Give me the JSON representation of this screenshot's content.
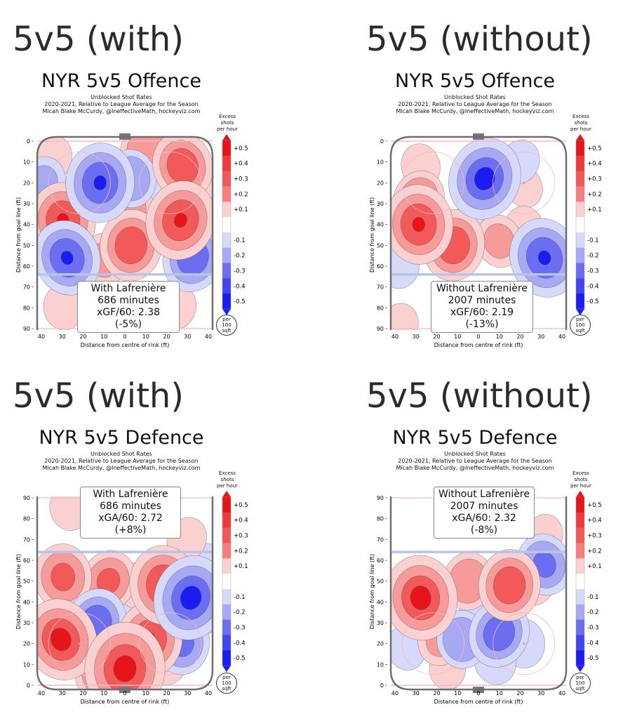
{
  "section_titles": [
    "5v5 (with)",
    "5v5 (without)",
    "5v5 (with)",
    "5v5 (without)"
  ],
  "colors": {
    "strong_red": "#e8141c",
    "red": "#f25a5a",
    "mid_red": "#f79a9a",
    "light_red": "#fbd0d0",
    "light_blue": "#d7d9fb",
    "mid_blue": "#a7a9f4",
    "blue": "#6b6ef0",
    "strong_blue": "#1a1cf0",
    "rink_line": "#6e6e6e",
    "blue_line": "#b9c3e6",
    "goal_line": "#f7b9c0",
    "net": "#777777"
  },
  "chart_data": [
    {
      "type": "heatmap",
      "title": "NYR 5v5 Offence",
      "subtitle": [
        "Unblocked Shot Rates",
        "2020-2021, Relative to League Average for the Season",
        "Micah Blake McCurdy, @IneffectiveMath, hockeyviz.com"
      ],
      "xlabel": "Distance from centre of rink (ft)",
      "ylabel": "Distance from goal line (ft)",
      "x_ticks": [
        "40",
        "30",
        "20",
        "10",
        "0",
        "10",
        "20",
        "30",
        "40"
      ],
      "y_ticks": [
        "0",
        "10",
        "20",
        "30",
        "40",
        "50",
        "60",
        "70",
        "80",
        "90"
      ],
      "orientation": "goal-top",
      "colorbar": {
        "title": [
          "Excess",
          "shots",
          "per hour"
        ],
        "ticks": [
          "+0.5",
          "+0.4",
          "+0.3",
          "+0.2",
          "+0.1",
          "-0.1",
          "-0.2",
          "-0.3",
          "-0.4",
          "-0.5"
        ]
      },
      "unit": [
        "per",
        "100",
        "sqft"
      ],
      "infobox": [
        "With Lafrenière",
        "686 minutes",
        "xGF/60: 2.38 (-5%)"
      ],
      "blobs": [
        {
          "x": -30,
          "y": 38,
          "v": 0.35
        },
        {
          "x": 27,
          "y": 38,
          "v": 0.38
        },
        {
          "x": 3,
          "y": 50,
          "v": 0.32
        },
        {
          "x": 10,
          "y": 5,
          "v": 0.22
        },
        {
          "x": 28,
          "y": 12,
          "v": 0.3
        },
        {
          "x": -10,
          "y": 57,
          "v": 0.18
        },
        {
          "x": 3,
          "y": 32,
          "v": 0.18
        },
        {
          "x": -35,
          "y": 8,
          "v": 0.12
        },
        {
          "x": 38,
          "y": 22,
          "v": 0.12
        },
        {
          "x": -30,
          "y": 80,
          "v": 0.12
        },
        {
          "x": 25,
          "y": 80,
          "v": 0.12
        },
        {
          "x": -12,
          "y": 20,
          "v": -0.38
        },
        {
          "x": 3,
          "y": 18,
          "v": -0.22
        },
        {
          "x": -28,
          "y": 56,
          "v": -0.35
        },
        {
          "x": 33,
          "y": 56,
          "v": -0.3
        },
        {
          "x": -40,
          "y": 20,
          "v": -0.18
        },
        {
          "x": 18,
          "y": 22,
          "v": -0.12
        },
        {
          "x": 15,
          "y": 55,
          "v": -0.08
        }
      ]
    },
    {
      "type": "heatmap",
      "title": "NYR 5v5 Offence",
      "subtitle": [
        "Unblocked Shot Rates",
        "2020-2021, Relative to League Average for the Season",
        "Micah Blake McCurdy, @IneffectiveMath, hockeyviz.com"
      ],
      "xlabel": "Distance from centre of rink (ft)",
      "ylabel": "Distance from goal line (ft)",
      "x_ticks": [
        "40",
        "30",
        "20",
        "10",
        "0",
        "10",
        "20",
        "30",
        "40"
      ],
      "y_ticks": [
        "0",
        "10",
        "20",
        "30",
        "40",
        "50",
        "60",
        "70",
        "80",
        "90"
      ],
      "orientation": "goal-top",
      "colorbar": {
        "title": [
          "Excess",
          "shots",
          "per hour"
        ],
        "ticks": [
          "+0.5",
          "+0.4",
          "+0.3",
          "+0.2",
          "+0.1",
          "-0.1",
          "-0.2",
          "-0.3",
          "-0.4",
          "-0.5"
        ]
      },
      "unit": [
        "per",
        "100",
        "sqft"
      ],
      "infobox": [
        "Without Lafrenière",
        "2007 minutes",
        "xGF/60: 2.19 (-13%)"
      ],
      "blobs": [
        {
          "x": -29,
          "y": 40,
          "v": 0.38
        },
        {
          "x": -12,
          "y": 50,
          "v": 0.32
        },
        {
          "x": -29,
          "y": 28,
          "v": 0.22
        },
        {
          "x": 10,
          "y": 48,
          "v": 0.18
        },
        {
          "x": 22,
          "y": 42,
          "v": 0.12
        },
        {
          "x": -28,
          "y": 12,
          "v": 0.12
        },
        {
          "x": 22,
          "y": 22,
          "v": 0.1
        },
        {
          "x": -38,
          "y": 88,
          "v": 0.1
        },
        {
          "x": 3,
          "y": 18,
          "v": -0.4
        },
        {
          "x": 32,
          "y": 56,
          "v": -0.38
        },
        {
          "x": 20,
          "y": 10,
          "v": -0.12
        },
        {
          "x": -38,
          "y": 60,
          "v": -0.12
        },
        {
          "x": 0,
          "y": 30,
          "v": -0.15
        }
      ]
    },
    {
      "type": "heatmap",
      "title": "NYR 5v5 Defence",
      "subtitle": [
        "Unblocked Shot Rates",
        "2020-2021, Relative to League Average for the Season",
        "Micah Blake McCurdy, @IneffectiveMath, hockeyviz.com"
      ],
      "xlabel": "Distance from centre of rink (ft)",
      "ylabel": "Distance from goal line (ft)",
      "x_ticks": [
        "40",
        "30",
        "20",
        "10",
        "0",
        "10",
        "20",
        "30",
        "40"
      ],
      "y_ticks": [
        "90",
        "80",
        "70",
        "60",
        "50",
        "40",
        "30",
        "20",
        "10",
        "0"
      ],
      "orientation": "goal-bottom",
      "colorbar": {
        "title": [
          "Excess",
          "shots",
          "per hour"
        ],
        "ticks": [
          "+0.5",
          "+0.4",
          "+0.3",
          "+0.2",
          "+0.1",
          "-0.1",
          "-0.2",
          "-0.3",
          "-0.4",
          "-0.5"
        ]
      },
      "unit": [
        "per",
        "100",
        "sqft"
      ],
      "infobox": [
        "With Lafrenière",
        "686 minutes",
        "xGA/60: 2.72 (+8%)"
      ],
      "blobs": [
        {
          "x": 0,
          "y": 8,
          "v": 0.48
        },
        {
          "x": -10,
          "y": 6,
          "v": 0.3
        },
        {
          "x": 12,
          "y": 22,
          "v": 0.35
        },
        {
          "x": -31,
          "y": 22,
          "v": 0.4
        },
        {
          "x": 19,
          "y": 48,
          "v": 0.38
        },
        {
          "x": -30,
          "y": 52,
          "v": 0.28
        },
        {
          "x": -8,
          "y": 50,
          "v": 0.25
        },
        {
          "x": 5,
          "y": 48,
          "v": 0.12
        },
        {
          "x": -27,
          "y": 85,
          "v": 0.12
        },
        {
          "x": 30,
          "y": 70,
          "v": 0.12
        },
        {
          "x": 20,
          "y": 12,
          "v": 0.15
        },
        {
          "x": 38,
          "y": 35,
          "v": 0.12
        },
        {
          "x": 32,
          "y": 42,
          "v": -0.42
        },
        {
          "x": -14,
          "y": 30,
          "v": -0.3
        },
        {
          "x": 28,
          "y": 20,
          "v": -0.25
        },
        {
          "x": -22,
          "y": 38,
          "v": -0.15
        },
        {
          "x": 0,
          "y": 38,
          "v": -0.1
        },
        {
          "x": 39,
          "y": 58,
          "v": -0.1
        }
      ]
    },
    {
      "type": "heatmap",
      "title": "NYR 5v5 Defence",
      "subtitle": [
        "Unblocked Shot Rates",
        "2020-2021, Relative to League Average for the Season",
        "Micah Blake McCurdy, @IneffectiveMath, hockeyviz.com"
      ],
      "xlabel": "Distance from centre of rink (ft)",
      "ylabel": "Distance from goal line (ft)",
      "x_ticks": [
        "40",
        "30",
        "20",
        "10",
        "0",
        "10",
        "20",
        "30",
        "40"
      ],
      "y_ticks": [
        "90",
        "80",
        "70",
        "60",
        "50",
        "40",
        "30",
        "20",
        "10",
        "0"
      ],
      "orientation": "goal-bottom",
      "colorbar": {
        "title": [
          "Excess",
          "shots",
          "per hour"
        ],
        "ticks": [
          "+0.5",
          "+0.4",
          "+0.3",
          "+0.2",
          "+0.1",
          "-0.1",
          "-0.2",
          "-0.3",
          "-0.4",
          "-0.5"
        ]
      },
      "unit": [
        "per",
        "100",
        "sqft"
      ],
      "infobox": [
        "Without Lafrenière",
        "2007 minutes",
        "xGA/60: 2.32 (-8%)"
      ],
      "blobs": [
        {
          "x": -28,
          "y": 42,
          "v": 0.42
        },
        {
          "x": 15,
          "y": 48,
          "v": 0.32
        },
        {
          "x": -5,
          "y": 50,
          "v": 0.22
        },
        {
          "x": -18,
          "y": 22,
          "v": 0.18
        },
        {
          "x": 27,
          "y": 50,
          "v": 0.15
        },
        {
          "x": 32,
          "y": 72,
          "v": 0.1
        },
        {
          "x": -15,
          "y": 8,
          "v": 0.1
        },
        {
          "x": 22,
          "y": 15,
          "v": 0.08
        },
        {
          "x": 10,
          "y": 25,
          "v": -0.3
        },
        {
          "x": -8,
          "y": 22,
          "v": -0.22
        },
        {
          "x": 32,
          "y": 58,
          "v": -0.25
        },
        {
          "x": 22,
          "y": 20,
          "v": -0.15
        },
        {
          "x": -35,
          "y": 18,
          "v": -0.12
        },
        {
          "x": 0,
          "y": 35,
          "v": -0.12
        },
        {
          "x": 8,
          "y": 12,
          "v": -0.15
        }
      ]
    }
  ]
}
